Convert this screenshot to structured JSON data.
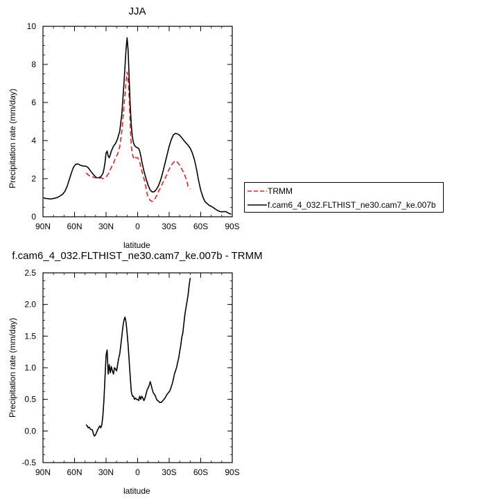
{
  "chart_data": [
    {
      "type": "line",
      "title": "JJA",
      "xlabel": "latitude",
      "ylabel": "Precipitation rate (mm/day)",
      "xlim": [
        90,
        -90
      ],
      "ylim": [
        0,
        10
      ],
      "x_ticks": [
        90,
        60,
        30,
        0,
        -30,
        -60,
        -90
      ],
      "x_tick_labels": [
        "90N",
        "60N",
        "30N",
        "0",
        "30S",
        "60S",
        "90S"
      ],
      "y_ticks": [
        0,
        2,
        4,
        6,
        8,
        10
      ],
      "y_tick_labels": [
        "0",
        "2",
        "4",
        "6",
        "8",
        "10"
      ],
      "legend_position": "right, outside plot",
      "series": [
        {
          "name": "TRMM",
          "color": "#e8211c",
          "dash": "dashed",
          "x": [
            49,
            47,
            45,
            43,
            41,
            39,
            37,
            35,
            33,
            31,
            29,
            27,
            25,
            23,
            21,
            19,
            17,
            15,
            13,
            11,
            10,
            9,
            8,
            7,
            6,
            5,
            4,
            3,
            2,
            1,
            0,
            -1,
            -2,
            -3,
            -4,
            -5,
            -6,
            -7,
            -8,
            -9,
            -10,
            -12,
            -14,
            -16,
            -18,
            -20,
            -22,
            -24,
            -26,
            -28,
            -30,
            -32,
            -34,
            -36,
            -38,
            -40,
            -42,
            -44,
            -46,
            -48,
            -50
          ],
          "y": [
            2.3,
            2.2,
            2.1,
            2.1,
            2.05,
            2.05,
            2.0,
            2.05,
            2.0,
            2.05,
            2.15,
            2.35,
            2.6,
            2.8,
            3.1,
            3.3,
            3.7,
            4.5,
            5.8,
            7.1,
            7.6,
            7.2,
            6.2,
            4.8,
            3.7,
            3.3,
            3.1,
            3.2,
            3.1,
            3.1,
            3.1,
            3.0,
            2.9,
            2.6,
            2.4,
            2.2,
            2.0,
            1.8,
            1.5,
            1.2,
            1.05,
            0.85,
            0.8,
            0.9,
            1.1,
            1.35,
            1.55,
            1.8,
            2.0,
            2.25,
            2.5,
            2.7,
            2.85,
            2.95,
            2.85,
            2.7,
            2.5,
            2.3,
            2.0,
            1.6,
            1.45
          ]
        },
        {
          "name": "f.cam6_4_032.FLTHIST_ne30.cam7_ke.007b",
          "color": "#000000",
          "dash": "solid",
          "x": [
            89,
            87,
            85,
            83,
            81,
            79,
            77,
            75,
            73,
            71,
            69,
            67,
            65,
            63,
            61,
            59,
            57,
            55,
            53,
            51,
            49,
            47,
            45,
            43,
            41,
            39,
            37,
            35,
            33,
            32,
            31,
            30,
            29,
            28,
            27,
            26,
            25,
            23,
            21,
            19,
            17,
            15,
            13,
            11,
            10,
            9,
            8,
            7,
            6,
            5,
            4,
            3,
            2,
            1,
            0,
            -1,
            -2,
            -3,
            -4,
            -6,
            -8,
            -10,
            -12,
            -14,
            -16,
            -18,
            -20,
            -22,
            -24,
            -26,
            -28,
            -30,
            -32,
            -34,
            -36,
            -38,
            -40,
            -42,
            -44,
            -46,
            -48,
            -50,
            -52,
            -54,
            -56,
            -58,
            -60,
            -62,
            -64,
            -66,
            -68,
            -70,
            -72,
            -74,
            -76,
            -78,
            -80,
            -82,
            -84,
            -86,
            -88,
            -89
          ],
          "y": [
            0.97,
            0.96,
            0.95,
            0.93,
            0.95,
            0.97,
            1.0,
            1.05,
            1.12,
            1.2,
            1.35,
            1.6,
            1.95,
            2.3,
            2.6,
            2.75,
            2.78,
            2.72,
            2.68,
            2.66,
            2.65,
            2.58,
            2.42,
            2.28,
            2.15,
            2.05,
            2.05,
            2.1,
            2.28,
            2.5,
            2.85,
            3.35,
            3.45,
            3.2,
            3.1,
            3.25,
            3.45,
            3.7,
            3.85,
            4.1,
            4.5,
            5.4,
            7.0,
            8.8,
            9.4,
            8.7,
            7.2,
            5.8,
            4.8,
            4.2,
            3.9,
            3.75,
            3.68,
            3.65,
            3.62,
            3.58,
            3.45,
            3.2,
            2.9,
            2.4,
            2.0,
            1.65,
            1.4,
            1.3,
            1.32,
            1.45,
            1.65,
            1.95,
            2.35,
            2.8,
            3.25,
            3.7,
            4.05,
            4.3,
            4.38,
            4.35,
            4.28,
            4.15,
            4.0,
            3.88,
            3.75,
            3.6,
            3.35,
            3.0,
            2.5,
            1.9,
            1.4,
            1.05,
            0.8,
            0.7,
            0.6,
            0.55,
            0.48,
            0.4,
            0.33,
            0.28,
            0.26,
            0.27,
            0.27,
            0.2,
            0.15,
            0.14
          ]
        }
      ]
    },
    {
      "type": "line",
      "title": "f.cam6_4_032.FLTHIST_ne30.cam7_ke.007b - TRMM",
      "xlabel": "latitude",
      "ylabel": "Precipitation rate (mm/day)",
      "xlim": [
        90,
        -90
      ],
      "ylim": [
        -0.5,
        2.5
      ],
      "x_ticks": [
        90,
        60,
        30,
        0,
        -30,
        -60,
        -90
      ],
      "x_tick_labels": [
        "90N",
        "60N",
        "30N",
        "0",
        "30S",
        "60S",
        "90S"
      ],
      "y_ticks": [
        -0.5,
        0.0,
        0.5,
        1.0,
        1.5,
        2.0,
        2.5
      ],
      "y_tick_labels": [
        "-0.5",
        "0.0",
        "0.5",
        "1.0",
        "1.5",
        "2.0",
        "2.5"
      ],
      "series": [
        {
          "color": "#000000",
          "dash": "solid",
          "x": [
            49,
            48,
            47,
            46,
            45,
            44,
            43,
            42,
            41,
            40,
            39,
            38,
            37,
            36,
            35,
            34,
            33,
            32,
            31,
            30,
            29,
            28,
            27,
            26,
            25,
            24,
            23,
            22,
            21,
            20,
            19,
            18,
            17,
            16,
            15,
            14,
            13,
            12,
            11,
            10,
            9,
            8,
            7,
            6,
            5,
            4,
            3,
            2,
            1,
            0,
            -1,
            -2,
            -3,
            -4,
            -5,
            -6,
            -7,
            -8,
            -9,
            -10,
            -11,
            -12,
            -13,
            -14,
            -15,
            -16,
            -17,
            -18,
            -19,
            -20,
            -21,
            -22,
            -23,
            -24,
            -25,
            -26,
            -27,
            -28,
            -29,
            -30,
            -31,
            -32,
            -33,
            -34,
            -35,
            -36,
            -37,
            -38,
            -39,
            -40,
            -41,
            -42,
            -43,
            -44,
            -45,
            -46,
            -47,
            -48,
            -49,
            -50
          ],
          "y": [
            0.1,
            0.08,
            0.05,
            0.06,
            0.03,
            0.02,
            0.02,
            -0.05,
            -0.08,
            -0.06,
            -0.02,
            0.02,
            0.05,
            0.08,
            0.05,
            0.1,
            0.25,
            0.5,
            0.85,
            1.2,
            1.28,
            0.9,
            1.05,
            0.92,
            1.02,
            0.95,
            0.9,
            1.0,
            0.98,
            0.95,
            1.05,
            1.15,
            1.22,
            1.35,
            1.5,
            1.65,
            1.75,
            1.8,
            1.72,
            1.55,
            1.35,
            1.1,
            0.85,
            0.62,
            0.55,
            0.55,
            0.5,
            0.52,
            0.5,
            0.5,
            0.48,
            0.55,
            0.5,
            0.55,
            0.52,
            0.48,
            0.52,
            0.58,
            0.65,
            0.68,
            0.72,
            0.78,
            0.72,
            0.65,
            0.6,
            0.58,
            0.55,
            0.5,
            0.48,
            0.47,
            0.45,
            0.45,
            0.46,
            0.48,
            0.5,
            0.52,
            0.55,
            0.58,
            0.6,
            0.62,
            0.65,
            0.7,
            0.75,
            0.82,
            0.9,
            0.95,
            1.0,
            1.08,
            1.15,
            1.25,
            1.35,
            1.48,
            1.55,
            1.7,
            1.85,
            1.95,
            2.05,
            2.15,
            2.3,
            2.42
          ]
        }
      ]
    }
  ],
  "legend": {
    "items": [
      {
        "label": "TRMM",
        "color": "#e8211c",
        "dash": "dashed"
      },
      {
        "label": "f.cam6_4_032.FLTHIST_ne30.cam7_ke.007b",
        "color": "#000000",
        "dash": "solid"
      }
    ]
  }
}
